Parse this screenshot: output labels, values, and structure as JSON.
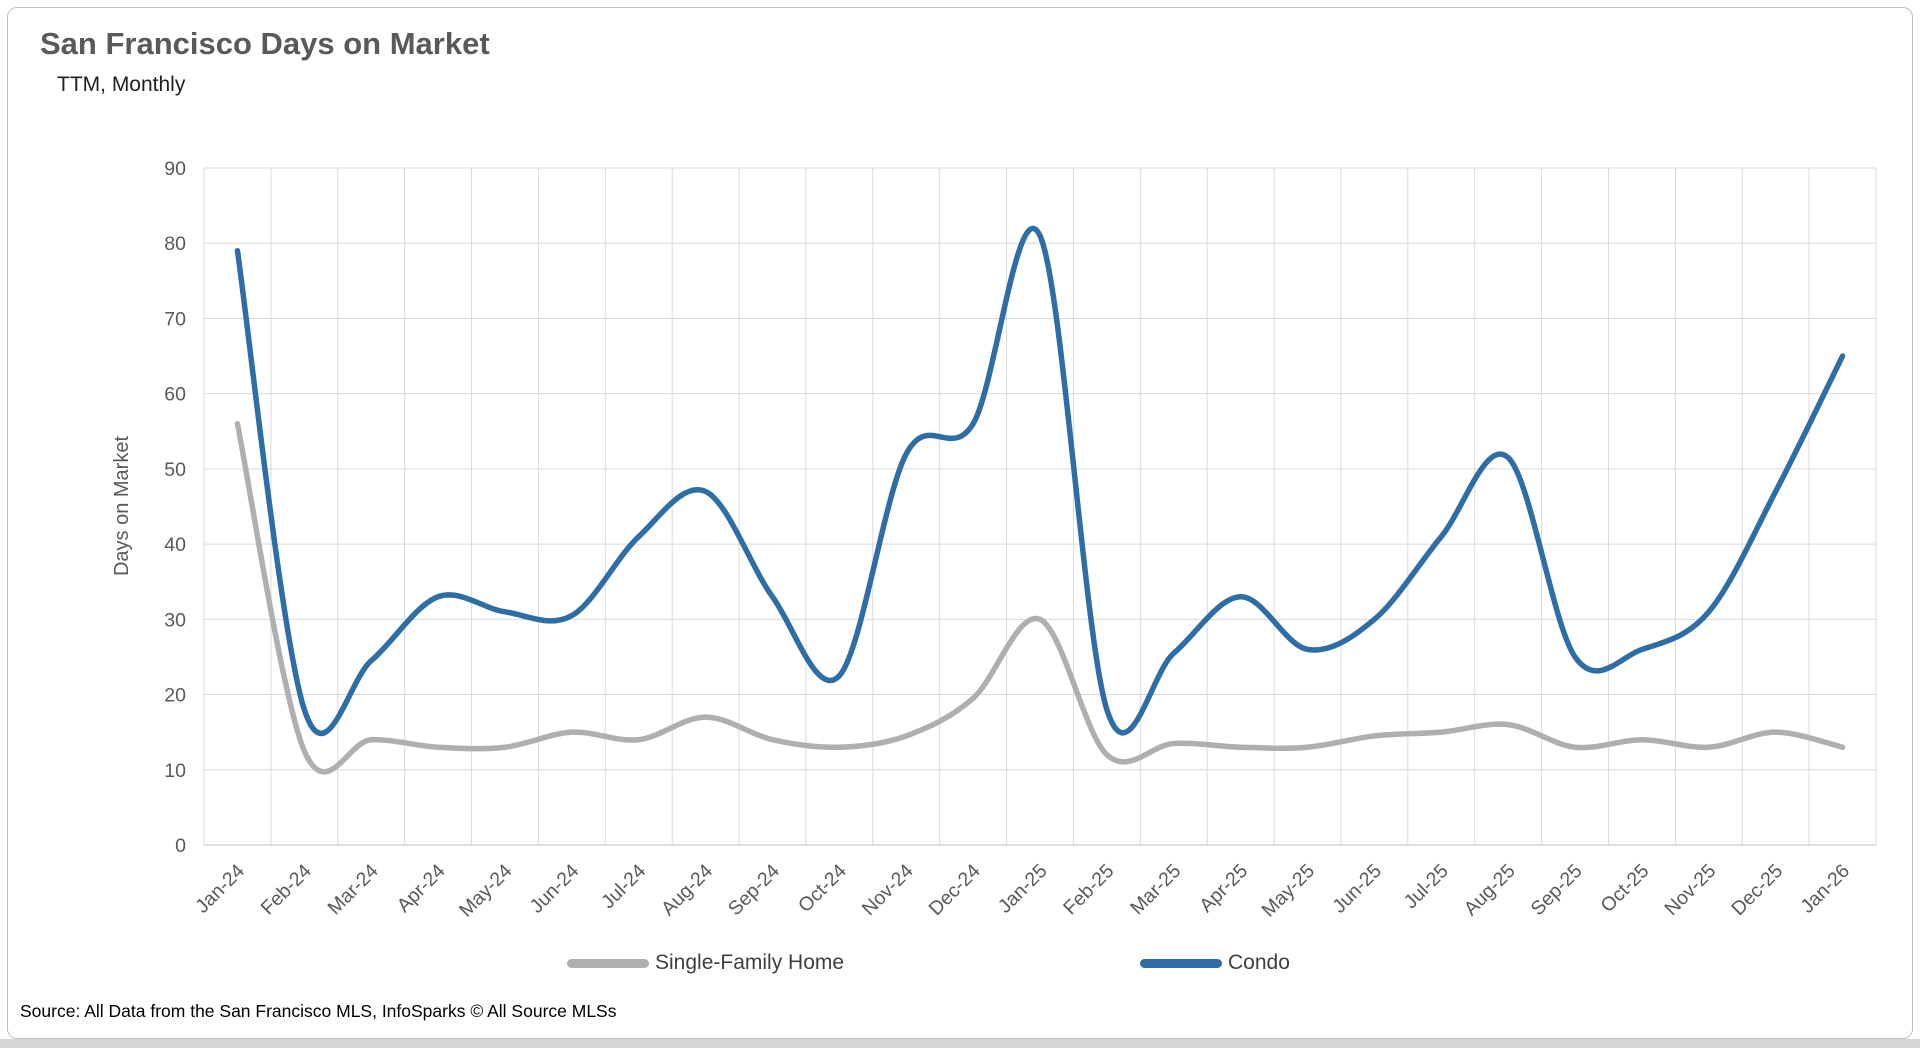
{
  "header": {
    "title": "San Francisco Days on Market",
    "subtitle": "TTM, Monthly"
  },
  "footer": {
    "source": "Source: All Data from the San Francisco MLS, InfoSparks © All Source MLSs"
  },
  "colors": {
    "condo_blue": "#2E6DA6",
    "single_family_gray": "#AFAFAF",
    "title_gray": "#595959",
    "grid": "#D9D9D9",
    "axis_line": "#BFBFBF",
    "bottom_strip": "#D5D5D5"
  },
  "chart_data": {
    "type": "line",
    "title": "San Francisco Days on Market",
    "subtitle": "TTM, Monthly",
    "xlabel": "",
    "ylabel": "Days on Market",
    "ylim": [
      0,
      90
    ],
    "ytick_step": 10,
    "yticks": [
      0,
      10,
      20,
      30,
      40,
      50,
      60,
      70,
      80,
      90
    ],
    "grid": true,
    "legend_position": "bottom",
    "line_style": "smooth",
    "categories": [
      "Jan-24",
      "Feb-24",
      "Mar-24",
      "Apr-24",
      "May-24",
      "Jun-24",
      "Jul-24",
      "Aug-24",
      "Sep-24",
      "Oct-24",
      "Nov-24",
      "Dec-24",
      "Jan-25",
      "Feb-25",
      "Mar-25",
      "Apr-25",
      "May-25",
      "Jun-25",
      "Jul-25",
      "Aug-25",
      "Sep-25",
      "Oct-25",
      "Nov-25",
      "Dec-25",
      "Jan-26"
    ],
    "series": [
      {
        "name": "Single-Family Home",
        "color": "#AFAFAF",
        "values": [
          56,
          12.5,
          14,
          13,
          13,
          15,
          14,
          17,
          14,
          13,
          14.5,
          19.5,
          30,
          12,
          13.5,
          13,
          13,
          14.5,
          15,
          16,
          13,
          14,
          13,
          15,
          13
        ]
      },
      {
        "name": "Condo",
        "color": "#2E6DA6",
        "values": [
          79,
          18,
          24.5,
          33,
          31,
          30.5,
          41,
          47,
          33,
          22.5,
          52,
          56,
          81,
          18,
          25.5,
          33,
          26,
          30,
          41,
          51.5,
          25,
          26,
          31,
          47,
          65
        ]
      }
    ]
  }
}
